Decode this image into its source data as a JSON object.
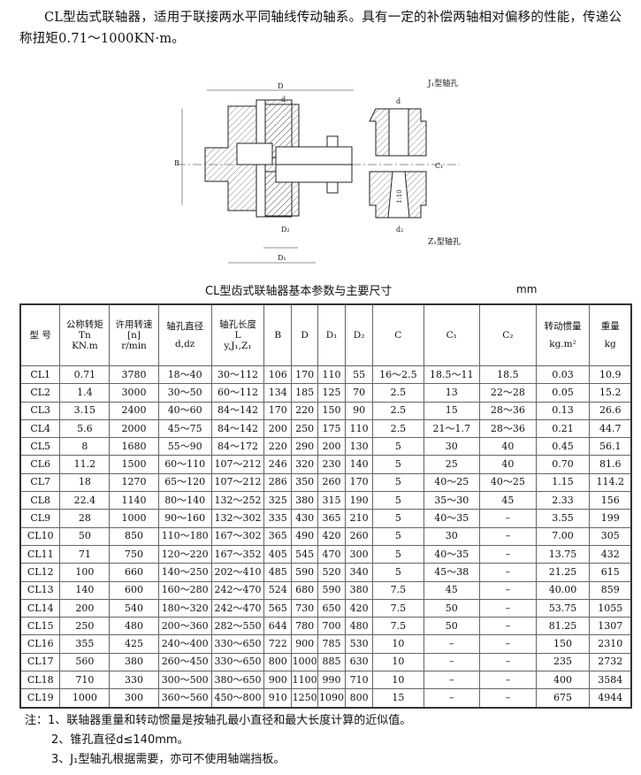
{
  "intro": "CL型齿式联轴器，适用于联接两水平同轴线传动轴系。具有一定的补偿两轴相对偏移的性能，传递公称扭矩0.71～1000KN·m。",
  "drawing": {
    "labels": {
      "D": "D",
      "d": "d",
      "B": "B",
      "L": "L",
      "C": "C",
      "D2": "D₂",
      "D1": "D₁",
      "C1": "C₁",
      "dz": "d₂",
      "J1": "J₁型轴孔",
      "Z1": "Z₁型轴孔",
      "taper": "1:10"
    }
  },
  "table_title": "CL型齿式联轴器基本参数与主要尺寸",
  "unit": "mm",
  "table": {
    "headers": [
      [
        "型 号"
      ],
      [
        "公称转矩",
        "Tn",
        "KN.m"
      ],
      [
        "许用转速",
        "[n]",
        "r/min"
      ],
      [
        "轴孔直径",
        "d,dz"
      ],
      [
        "轴孔长度",
        "L",
        "y,J₁,Z₁"
      ],
      [
        "B"
      ],
      [
        "D"
      ],
      [
        "D₁"
      ],
      [
        "D₂"
      ],
      [
        "C"
      ],
      [
        "C₁"
      ],
      [
        "C₂"
      ],
      [
        "转动惯量",
        "kg.m²"
      ],
      [
        "重量",
        "kg"
      ]
    ],
    "rows": [
      [
        "CL1",
        "0.71",
        "3780",
        "18～40",
        "30～112",
        "106",
        "170",
        "110",
        "55",
        "16～2.5",
        "18.5～11",
        "18.5",
        "0.03",
        "10.9"
      ],
      [
        "CL2",
        "1.4",
        "3000",
        "30～50",
        "60～112",
        "134",
        "185",
        "125",
        "70",
        "2.5",
        "13",
        "22～28",
        "0.05",
        "15.2"
      ],
      [
        "CL3",
        "3.15",
        "2400",
        "40～60",
        "84～142",
        "170",
        "220",
        "150",
        "90",
        "2.5",
        "15",
        "28～36",
        "0.13",
        "26.6"
      ],
      [
        "CL4",
        "5.6",
        "2000",
        "45～75",
        "84～142",
        "200",
        "250",
        "175",
        "110",
        "2.5",
        "21～1.7",
        "28～36",
        "0.21",
        "44.7"
      ],
      [
        "CL5",
        "8",
        "1680",
        "55～90",
        "84～172",
        "220",
        "290",
        "200",
        "130",
        "5",
        "30",
        "40",
        "0.45",
        "56.1"
      ],
      [
        "CL6",
        "11.2",
        "1500",
        "60～110",
        "107～212",
        "246",
        "320",
        "230",
        "140",
        "5",
        "25",
        "40",
        "0.70",
        "81.6"
      ],
      [
        "CL7",
        "18",
        "1270",
        "65～120",
        "107～212",
        "286",
        "350",
        "260",
        "170",
        "5",
        "40～25",
        "40～25",
        "1.15",
        "114.2"
      ],
      [
        "CL8",
        "22.4",
        "1140",
        "80～140",
        "132～252",
        "325",
        "380",
        "315",
        "190",
        "5",
        "35～30",
        "45",
        "2.33",
        "156"
      ],
      [
        "CL9",
        "28",
        "1000",
        "90～160",
        "132～302",
        "335",
        "430",
        "365",
        "210",
        "5",
        "40～35",
        "–",
        "3.55",
        "199"
      ],
      [
        "CL10",
        "50",
        "850",
        "110～180",
        "167～302",
        "365",
        "490",
        "420",
        "260",
        "5",
        "30",
        "–",
        "7.00",
        "305"
      ],
      [
        "CL11",
        "71",
        "750",
        "120～220",
        "167～352",
        "405",
        "545",
        "470",
        "300",
        "5",
        "40～35",
        "–",
        "13.75",
        "432"
      ],
      [
        "CL12",
        "100",
        "660",
        "140～250",
        "202～410",
        "485",
        "590",
        "520",
        "340",
        "5",
        "45～38",
        "–",
        "21.25",
        "615"
      ],
      [
        "CL13",
        "140",
        "600",
        "160～280",
        "242～470",
        "524",
        "680",
        "590",
        "380",
        "7.5",
        "45",
        "–",
        "40.00",
        "859"
      ],
      [
        "CL14",
        "200",
        "540",
        "180～320",
        "242～470",
        "565",
        "730",
        "650",
        "420",
        "7.5",
        "50",
        "–",
        "53.75",
        "1055"
      ],
      [
        "CL15",
        "250",
        "480",
        "200～360",
        "282～550",
        "644",
        "780",
        "700",
        "480",
        "7.5",
        "50",
        "–",
        "81.25",
        "1307"
      ],
      [
        "CL16",
        "355",
        "425",
        "240～400",
        "330～650",
        "722",
        "900",
        "785",
        "530",
        "10",
        "–",
        "–",
        "150",
        "2310"
      ],
      [
        "CL17",
        "560",
        "380",
        "260～450",
        "330～650",
        "800",
        "1000",
        "885",
        "630",
        "10",
        "–",
        "–",
        "235",
        "2732"
      ],
      [
        "CL18",
        "710",
        "330",
        "300～500",
        "380～650",
        "900",
        "1100",
        "990",
        "710",
        "10",
        "–",
        "–",
        "400",
        "3584"
      ],
      [
        "CL19",
        "1000",
        "300",
        "360～560",
        "450～800",
        "910",
        "1250",
        "1090",
        "800",
        "15",
        "–",
        "–",
        "675",
        "4944"
      ]
    ]
  },
  "notes": [
    "注：1、联轴器重量和转动惯量是按轴孔最小直径和最大长度计算的近似值。",
    "2、锥孔直径d≤140mm。",
    "3、J₁型轴孔根据需要，亦可不使用轴端挡板。"
  ]
}
